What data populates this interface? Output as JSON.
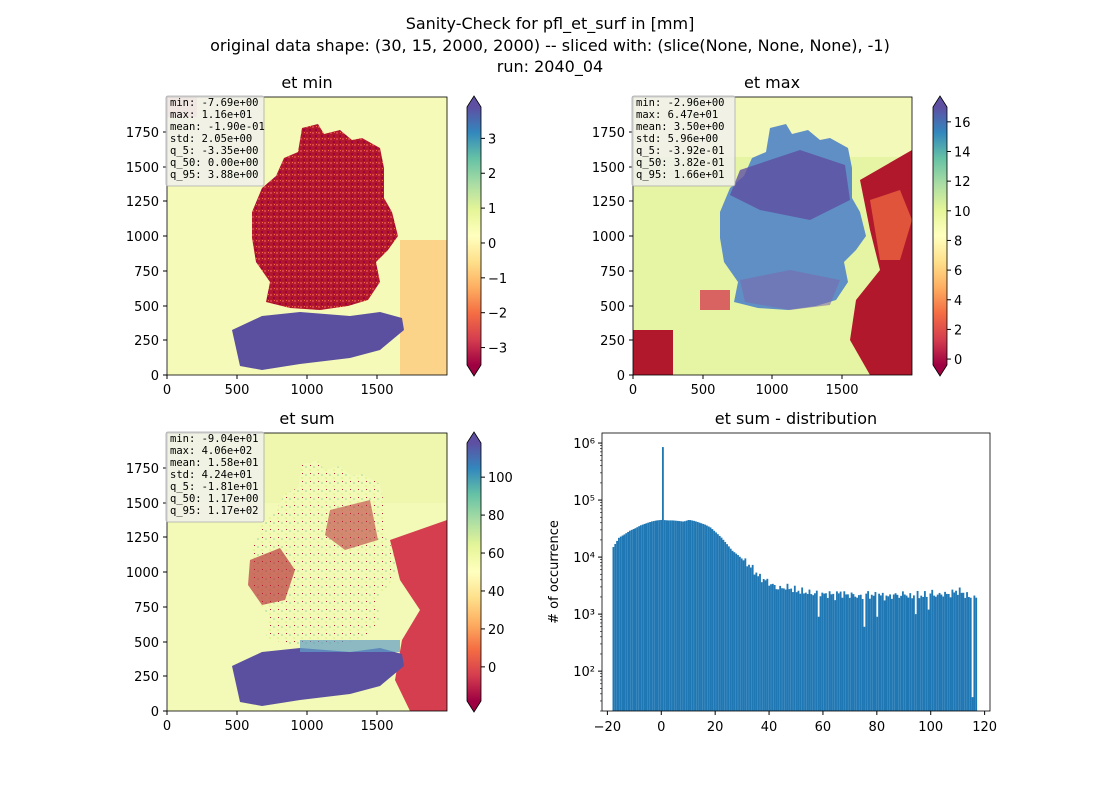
{
  "figure": {
    "title_lines": [
      "Sanity-Check for pfl_et_surf in [mm]",
      "original data shape: (30, 15, 2000, 2000) -- sliced with: (slice(None, None, None), -1)",
      "run: 2040_04"
    ]
  },
  "chart_data": [
    {
      "type": "heatmap",
      "title": "et min",
      "xlim": [
        0,
        2000
      ],
      "ylim": [
        0,
        2000
      ],
      "x_ticks": [
        "0",
        "500",
        "1000",
        "1500"
      ],
      "y_ticks": [
        "0",
        "250",
        "500",
        "750",
        "1000",
        "1250",
        "1500",
        "1750"
      ],
      "colormap": "Spectral",
      "colorbar": {
        "range": [
          -3.5,
          3.9
        ],
        "ticks": [
          "−3",
          "−2",
          "−1",
          "0",
          "1",
          "2",
          "3"
        ],
        "extend": "both"
      },
      "stats": [
        "min: -7.69e+00",
        "max: 1.16e+01",
        "mean: -1.90e-01",
        "std: 2.05e+00",
        "q_5: -3.35e+00",
        "q_50: 0.00e+00",
        "q_95: 3.88e+00"
      ]
    },
    {
      "type": "heatmap",
      "title": "et max",
      "xlim": [
        0,
        2000
      ],
      "ylim": [
        0,
        2000
      ],
      "x_ticks": [
        "0",
        "500",
        "1000",
        "1500"
      ],
      "y_ticks": [
        "0",
        "250",
        "500",
        "750",
        "1000",
        "1250",
        "1500",
        "1750"
      ],
      "colormap": "Spectral",
      "colorbar": {
        "range": [
          -0.4,
          17
        ],
        "ticks": [
          "0",
          "2",
          "4",
          "6",
          "8",
          "10",
          "12",
          "14",
          "16"
        ],
        "extend": "both"
      },
      "stats": [
        "min: -2.96e+00",
        "max: 6.47e+01",
        "mean: 3.50e+00",
        "std: 5.96e+00",
        "q_5: -3.92e-01",
        "q_50: 3.82e-01",
        "q_95: 1.66e+01"
      ]
    },
    {
      "type": "heatmap",
      "title": "et sum",
      "xlim": [
        0,
        2000
      ],
      "ylim": [
        0,
        2000
      ],
      "x_ticks": [
        "0",
        "500",
        "1000",
        "1500"
      ],
      "y_ticks": [
        "0",
        "250",
        "500",
        "750",
        "1000",
        "1250",
        "1500",
        "1750"
      ],
      "colormap": "Spectral",
      "colorbar": {
        "range": [
          -18,
          118
        ],
        "ticks": [
          "0",
          "20",
          "40",
          "60",
          "80",
          "100"
        ],
        "extend": "both"
      },
      "stats": [
        "min: -9.04e+01",
        "max: 4.06e+02",
        "mean: 1.58e+01",
        "std: 4.24e+01",
        "q_5: -1.81e+01",
        "q_50: 1.17e+00",
        "q_95: 1.17e+02"
      ]
    },
    {
      "type": "bar",
      "title": "et sum - distribution",
      "xlabel": "",
      "ylabel": "# of occurrence",
      "xlim": [
        -22,
        122
      ],
      "ylim": [
        20,
        1500000
      ],
      "y_scale": "log",
      "x_ticks": [
        "−20",
        "0",
        "20",
        "40",
        "60",
        "80",
        "100",
        "120"
      ],
      "y_ticks": [
        "10²",
        "10³",
        "10⁴",
        "10⁵",
        "10⁶"
      ],
      "bar_color": "#1f77b4",
      "bin_width": 0.68,
      "bin_start": -18.1,
      "bin_end": 117.0,
      "profile": [
        [
          -18.1,
          15000
        ],
        [
          -16.0,
          22000
        ],
        [
          -14.0,
          25000
        ],
        [
          -12.0,
          29000
        ],
        [
          -10.0,
          32000
        ],
        [
          -8.0,
          36000
        ],
        [
          -6.0,
          39000
        ],
        [
          -4.0,
          42000
        ],
        [
          -2.0,
          44000
        ],
        [
          0.0,
          45000
        ],
        [
          2.0,
          44000
        ],
        [
          4.0,
          44000
        ],
        [
          6.0,
          43000
        ],
        [
          8.0,
          42000
        ],
        [
          10.0,
          45000
        ],
        [
          12.0,
          43000
        ],
        [
          14.0,
          40000
        ],
        [
          16.0,
          37000
        ],
        [
          18.0,
          33000
        ],
        [
          20.0,
          27000
        ],
        [
          22.0,
          22000
        ],
        [
          24.0,
          17000
        ],
        [
          26.0,
          13000
        ],
        [
          28.0,
          11000
        ],
        [
          30.0,
          9000
        ],
        [
          32.0,
          7500
        ],
        [
          34.0,
          6000
        ],
        [
          36.0,
          4500
        ],
        [
          38.0,
          4000
        ],
        [
          40.0,
          3500
        ],
        [
          42.0,
          3000
        ],
        [
          44.0,
          2800
        ],
        [
          46.0,
          3000
        ],
        [
          48.0,
          2800
        ],
        [
          50.0,
          2600
        ],
        [
          52.0,
          2500
        ],
        [
          54.0,
          2400
        ],
        [
          56.0,
          2300
        ],
        [
          58.0,
          2400
        ],
        [
          60.0,
          2200
        ],
        [
          62.0,
          2300
        ],
        [
          64.0,
          2100
        ],
        [
          66.0,
          2400
        ],
        [
          68.0,
          2200
        ],
        [
          70.0,
          2200
        ],
        [
          72.0,
          2100
        ],
        [
          74.0,
          2000
        ],
        [
          76.0,
          2300
        ],
        [
          78.0,
          2100
        ],
        [
          80.0,
          2200
        ],
        [
          82.0,
          2100
        ],
        [
          84.0,
          2000
        ],
        [
          86.0,
          2200
        ],
        [
          88.0,
          2100
        ],
        [
          90.0,
          2300
        ],
        [
          92.0,
          2000
        ],
        [
          94.0,
          2200
        ],
        [
          96.0,
          2100
        ],
        [
          98.0,
          2200
        ],
        [
          100.0,
          2400
        ],
        [
          102.0,
          2100
        ],
        [
          104.0,
          2300
        ],
        [
          106.0,
          2200
        ],
        [
          108.0,
          2400
        ],
        [
          110.0,
          2600
        ],
        [
          112.0,
          2300
        ],
        [
          114.0,
          2000
        ],
        [
          116.0,
          1900
        ],
        [
          117.0,
          1900
        ]
      ],
      "spikes": [
        [
          0.0,
          850000
        ],
        [
          58.0,
          900
        ],
        [
          75.0,
          600
        ],
        [
          80.0,
          900
        ],
        [
          94.0,
          1000
        ],
        [
          99.0,
          1200
        ],
        [
          115.5,
          35
        ]
      ]
    }
  ]
}
